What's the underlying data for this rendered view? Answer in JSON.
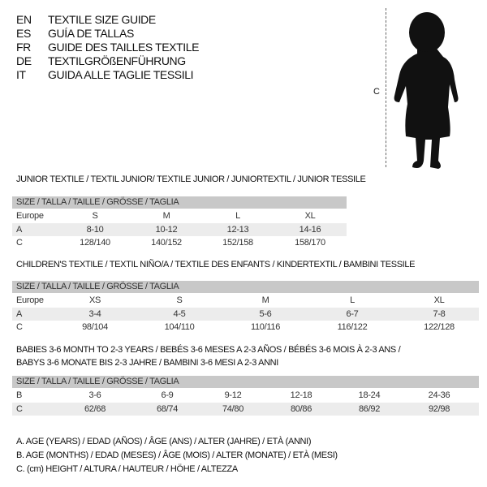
{
  "header": {
    "lines": [
      {
        "code": "EN",
        "title": "TEXTILE SIZE GUIDE"
      },
      {
        "code": "ES",
        "title": "GUÍA DE TALLAS"
      },
      {
        "code": "FR",
        "title": "GUIDE DES TAILLES TEXTILE"
      },
      {
        "code": "DE",
        "title": "TEXTILGRÖßENFÜHRUNG"
      },
      {
        "code": "IT",
        "title": "GUIDA ALLE TAGLIE TESSILI"
      }
    ],
    "figure_label": "C",
    "figure_icon": "child-silhouette-icon"
  },
  "junior": {
    "title": "JUNIOR TEXTILE / TEXTIL JUNIOR/ TEXTILE JUNIOR / JUNIORTEXTIL / JUNIOR TESSILE",
    "size_header": "SIZE / TALLA / TAILLE / GRÖSSE / TAGLIA",
    "rows": [
      {
        "label": "Europe",
        "cells": [
          "S",
          "M",
          "L",
          "XL"
        ]
      },
      {
        "label": "A",
        "cells": [
          "8-10",
          "10-12",
          "12-13",
          "14-16"
        ]
      },
      {
        "label": "C",
        "cells": [
          "128/140",
          "140/152",
          "152/158",
          "158/170"
        ]
      }
    ]
  },
  "children": {
    "title": "CHILDREN'S TEXTILE / TEXTIL NIÑO/A / TEXTILE DES ENFANTS / KINDERTEXTIL / BAMBINI TESSILE",
    "size_header": "SIZE / TALLA / TAILLE / GRÖSSE / TAGLIA",
    "rows": [
      {
        "label": "Europe",
        "cells": [
          "XS",
          "S",
          "M",
          "L",
          "XL"
        ]
      },
      {
        "label": "A",
        "cells": [
          "3-4",
          "4-5",
          "5-6",
          "6-7",
          "7-8"
        ]
      },
      {
        "label": "C",
        "cells": [
          "98/104",
          "104/110",
          "110/116",
          "116/122",
          "122/128"
        ]
      }
    ]
  },
  "babies": {
    "title_line1": "BABIES 3-6 MONTH TO 2-3 YEARS / BEBÉS 3-6 MESES A 2-3 AÑOS / BÉBÉS 3-6 MOIS À 2-3 ANS /",
    "title_line2": "BABYS 3-6 MONATE BIS 2-3 JAHRE / BAMBINI 3-6 MESI A 2-3 ANNI",
    "size_header": "SIZE / TALLA / TAILLE / GRÖSSE / TAGLIA",
    "rows": [
      {
        "label": "B",
        "cells": [
          "3-6",
          "6-9",
          "9-12",
          "12-18",
          "18-24",
          "24-36"
        ]
      },
      {
        "label": "C",
        "cells": [
          "62/68",
          "68/74",
          "74/80",
          "80/86",
          "86/92",
          "92/98"
        ]
      }
    ]
  },
  "legend": [
    "A. AGE (YEARS) / EDAD (AÑOS) / ÂGE (ANS) / ALTER (JAHRE) / ETÀ (ANNI)",
    "B. AGE (MONTHS) / EDAD (MESES) / ÂGE (MOIS) / ALTER (MONATE) / ETÀ (MESI)",
    "C. (cm) HEIGHT / ALTURA / HAUTEUR / HÖHE / ALTEZZA"
  ]
}
